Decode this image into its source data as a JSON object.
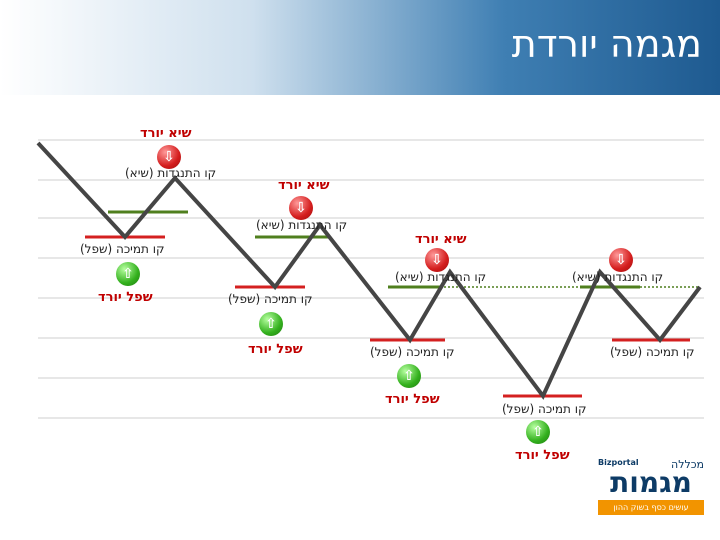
{
  "header": {
    "title": "מגמה יורדת"
  },
  "labels": {
    "peak": "שיא יורד",
    "trough": "שפל יורד",
    "resistance": "קו התנגדות (שיא)",
    "support": "קו תמיכה (שפל)"
  },
  "logo": {
    "top": "מכללה",
    "brand": "Bizportal",
    "main": "מגמות",
    "sub": "עושים כסף בשוק ההון"
  },
  "colors": {
    "line": "#454545",
    "resistance": "#4f7f1e",
    "support": "#d42020",
    "peak_text": "#c00000",
    "trough_text": "#c00000"
  }
}
